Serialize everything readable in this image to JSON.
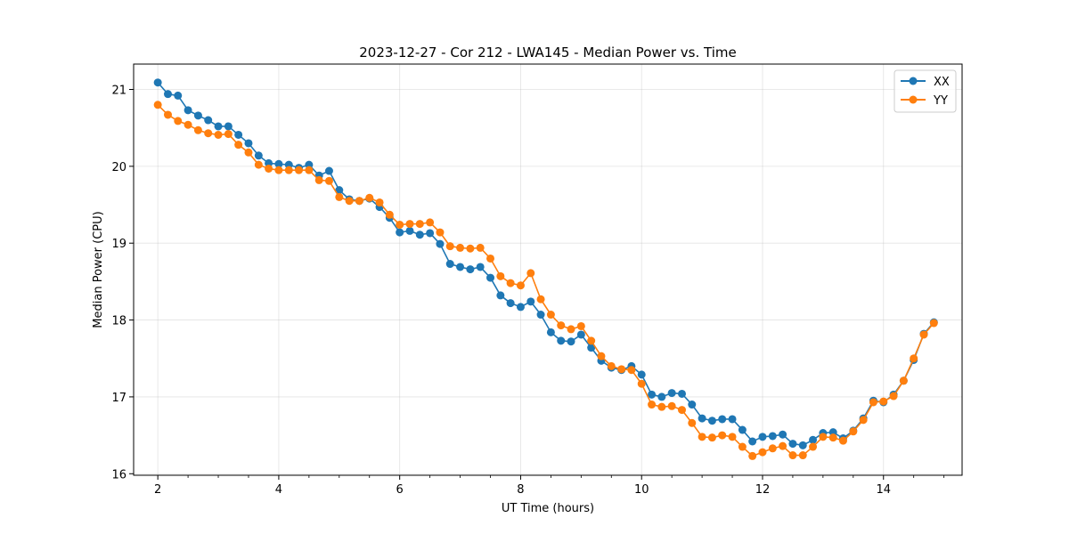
{
  "chart_data": {
    "type": "line",
    "title": "2023-12-27 - Cor 212 - LWA145 - Median Power vs. Time",
    "xlabel": "UT Time (hours)",
    "ylabel": "Median Power (CPU)",
    "xlim": [
      1.6,
      15.3
    ],
    "ylim": [
      15.98,
      21.33
    ],
    "xticks": [
      2,
      4,
      6,
      8,
      10,
      12,
      14
    ],
    "yticks": [
      16,
      17,
      18,
      19,
      20,
      21
    ],
    "grid": true,
    "legend_position": "top-right",
    "x": [
      2.0,
      2.167,
      2.333,
      2.5,
      2.667,
      2.833,
      3.0,
      3.167,
      3.333,
      3.5,
      3.667,
      3.833,
      4.0,
      4.167,
      4.333,
      4.5,
      4.667,
      4.833,
      5.0,
      5.167,
      5.333,
      5.5,
      5.667,
      5.833,
      6.0,
      6.167,
      6.333,
      6.5,
      6.667,
      6.833,
      7.0,
      7.167,
      7.333,
      7.5,
      7.667,
      7.833,
      8.0,
      8.167,
      8.333,
      8.5,
      8.667,
      8.833,
      9.0,
      9.167,
      9.333,
      9.5,
      9.667,
      9.833,
      10.0,
      10.167,
      10.333,
      10.5,
      10.667,
      10.833,
      11.0,
      11.167,
      11.333,
      11.5,
      11.667,
      11.833,
      12.0,
      12.167,
      12.333,
      12.5,
      12.667,
      12.833,
      13.0,
      13.167,
      13.333,
      13.5,
      13.667,
      13.833,
      14.0,
      14.167,
      14.333,
      14.5,
      14.667,
      14.833
    ],
    "series": [
      {
        "name": "XX",
        "color": "#1f77b4",
        "values": [
          21.09,
          20.94,
          20.92,
          20.73,
          20.66,
          20.6,
          20.52,
          20.52,
          20.41,
          20.3,
          20.14,
          20.04,
          20.03,
          20.02,
          19.98,
          20.02,
          19.88,
          19.94,
          19.69,
          19.57,
          19.55,
          19.58,
          19.47,
          19.33,
          19.14,
          19.16,
          19.11,
          19.13,
          18.99,
          18.73,
          18.69,
          18.66,
          18.69,
          18.55,
          18.32,
          18.22,
          18.17,
          18.24,
          18.07,
          17.84,
          17.73,
          17.72,
          17.81,
          17.64,
          17.47,
          17.38,
          17.35,
          17.4,
          17.29,
          17.03,
          17.0,
          17.05,
          17.04,
          16.9,
          16.72,
          16.69,
          16.71,
          16.71,
          16.57,
          16.42,
          16.48,
          16.49,
          16.51,
          16.39,
          16.37,
          16.44,
          16.53,
          16.54,
          16.46,
          16.56,
          16.72,
          16.95,
          16.93,
          17.03,
          17.21,
          17.48,
          17.82,
          17.97
        ]
      },
      {
        "name": "YY",
        "color": "#ff7f0e",
        "values": [
          20.8,
          20.67,
          20.59,
          20.54,
          20.47,
          20.43,
          20.41,
          20.42,
          20.28,
          20.18,
          20.02,
          19.97,
          19.95,
          19.95,
          19.95,
          19.95,
          19.82,
          19.81,
          19.6,
          19.55,
          19.55,
          19.59,
          19.53,
          19.37,
          19.24,
          19.25,
          19.25,
          19.27,
          19.14,
          18.96,
          18.94,
          18.93,
          18.94,
          18.8,
          18.57,
          18.48,
          18.45,
          18.61,
          18.27,
          18.07,
          17.93,
          17.88,
          17.92,
          17.73,
          17.53,
          17.4,
          17.36,
          17.35,
          17.17,
          16.9,
          16.87,
          16.88,
          16.83,
          16.66,
          16.48,
          16.47,
          16.5,
          16.48,
          16.35,
          16.23,
          16.28,
          16.33,
          16.36,
          16.24,
          16.24,
          16.35,
          16.48,
          16.47,
          16.43,
          16.55,
          16.7,
          16.93,
          16.94,
          17.01,
          17.21,
          17.5,
          17.81,
          17.96
        ]
      }
    ]
  }
}
